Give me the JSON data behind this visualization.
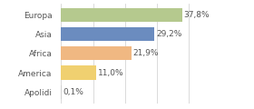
{
  "categories": [
    "Europa",
    "Asia",
    "Africa",
    "America",
    "Apolidi"
  ],
  "values": [
    37.8,
    29.2,
    21.9,
    11.0,
    0.1
  ],
  "labels": [
    "37,8%",
    "29,2%",
    "21,9%",
    "11,0%",
    "0,1%"
  ],
  "bar_colors": [
    "#b5c98e",
    "#6b8cbf",
    "#f0b882",
    "#f0d070",
    "#d0d0d0"
  ],
  "xlim": [
    0,
    46
  ],
  "background_color": "#ffffff",
  "label_fontsize": 6.5,
  "tick_fontsize": 6.5,
  "grid_color": "#cccccc",
  "text_color": "#555555"
}
